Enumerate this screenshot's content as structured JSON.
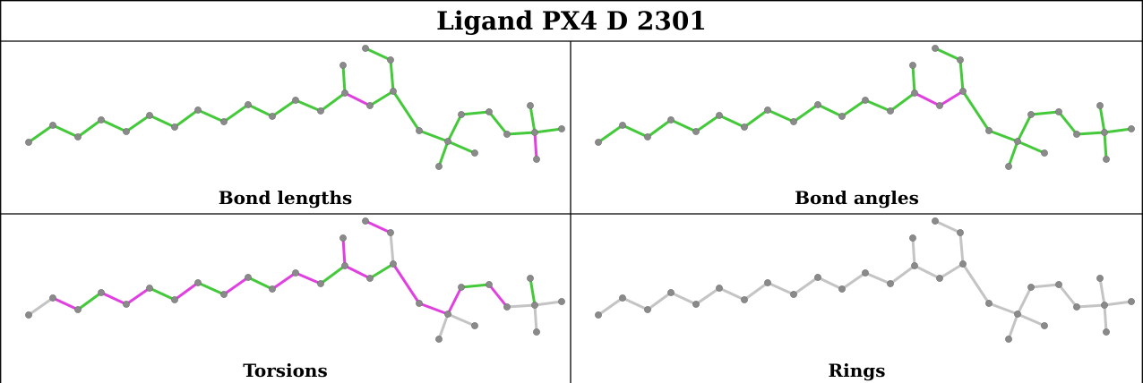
{
  "title": "Ligand PX4 D 2301",
  "panels": [
    {
      "caption": "Bond lengths"
    },
    {
      "caption": "Bond angles"
    },
    {
      "caption": "Torsions"
    },
    {
      "caption": "Rings"
    }
  ],
  "colors": {
    "green": "#44c93a",
    "magenta": "#e040e0",
    "grey": "#c4c4c4",
    "atom": "#8a8a8a",
    "border": "#000000"
  },
  "bond_colors": [
    [
      "G",
      "G",
      "G",
      "G",
      "G",
      "G",
      "G",
      "G",
      "G",
      "G",
      "G",
      "G",
      "G",
      "G",
      "M",
      "G",
      "G",
      "G",
      "G",
      "G",
      "G",
      "G",
      "G",
      "G",
      "G",
      "G",
      "M",
      "G",
      "G"
    ],
    [
      "G",
      "G",
      "G",
      "G",
      "G",
      "G",
      "G",
      "G",
      "G",
      "G",
      "G",
      "G",
      "G",
      "G",
      "M",
      "M",
      "G",
      "G",
      "G",
      "G",
      "G",
      "G",
      "G",
      "G",
      "G",
      "G",
      "G",
      "G",
      "G"
    ],
    [
      "N",
      "M",
      "G",
      "M",
      "M",
      "G",
      "M",
      "G",
      "M",
      "G",
      "M",
      "M",
      "G",
      "M",
      "M",
      "G",
      "N",
      "M",
      "M",
      "M",
      "M",
      "G",
      "M",
      "N",
      "N",
      "G",
      "N",
      "N",
      "N"
    ],
    [
      "N",
      "N",
      "N",
      "N",
      "N",
      "N",
      "N",
      "N",
      "N",
      "N",
      "N",
      "N",
      "N",
      "N",
      "N",
      "N",
      "N",
      "N",
      "N",
      "N",
      "N",
      "N",
      "N",
      "N",
      "N",
      "N",
      "N",
      "N",
      "N"
    ]
  ]
}
